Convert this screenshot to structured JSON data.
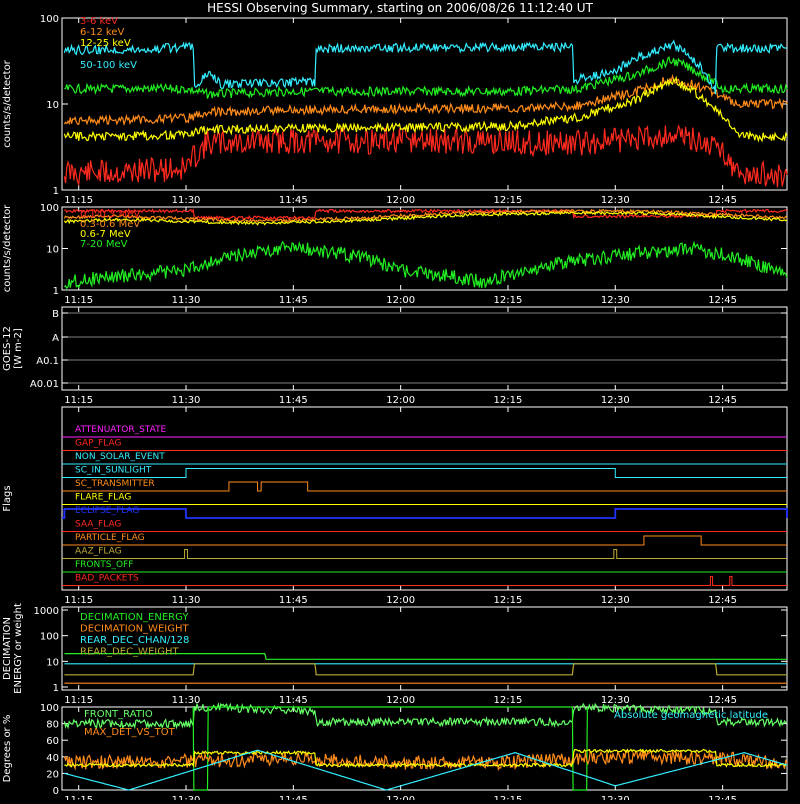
{
  "title": "HESSI Observing Summary, starting on 2006/08/26 11:12:40 UT",
  "time_axis": {
    "start": "11:12:40",
    "end": "12:54:00",
    "ticks": [
      "11:15",
      "11:30",
      "11:45",
      "12:00",
      "12:15",
      "12:30",
      "12:45"
    ]
  },
  "colors": {
    "background": "#000000",
    "frame": "#ffffff",
    "red": "#ff2a1f",
    "orange": "#ff8c1a",
    "yellow": "#ffff00",
    "green": "#22ee22",
    "cyan": "#33eeff",
    "magenta": "#ff22ff",
    "blue": "#2233ff",
    "olive": "#bbaa33",
    "lightgreen": "#66ff66"
  },
  "chart_data": [
    {
      "id": "low-energy-rates",
      "type": "line",
      "ylabel": "counts/s/detector",
      "yscale": "log",
      "ylim": [
        1,
        100
      ],
      "ytick_labels": [
        "1",
        "10",
        "100"
      ],
      "grid": false,
      "legend_position": "top-left",
      "series": [
        {
          "name": "3-6 keV",
          "color": "red",
          "legend_visible": true,
          "x": [
            "11:13",
            "11:20",
            "11:30",
            "11:33",
            "11:45",
            "12:00",
            "12:15",
            "12:25",
            "12:33",
            "12:38",
            "12:45",
            "12:47",
            "12:54"
          ],
          "y": [
            1.6,
            1.6,
            1.8,
            3.5,
            3.7,
            3.7,
            3.6,
            3.5,
            4.0,
            4.5,
            3.0,
            1.5,
            1.5
          ]
        },
        {
          "name": "6-12 keV",
          "color": "orange",
          "legend_visible": true,
          "x": [
            "11:13",
            "11:20",
            "11:30",
            "11:33",
            "11:45",
            "12:00",
            "12:15",
            "12:25",
            "12:33",
            "12:38",
            "12:45",
            "12:47",
            "12:54"
          ],
          "y": [
            6.5,
            6.5,
            6.8,
            8.0,
            8.5,
            8.8,
            9.0,
            9.5,
            14,
            20,
            12,
            10,
            10
          ]
        },
        {
          "name": "12-25 keV",
          "color": "yellow",
          "legend_visible": true,
          "x": [
            "11:13",
            "11:20",
            "11:30",
            "11:33",
            "11:45",
            "12:00",
            "12:15",
            "12:25",
            "12:33",
            "12:38",
            "12:45",
            "12:47",
            "12:54"
          ],
          "y": [
            4.2,
            4.2,
            4.4,
            5.0,
            5.3,
            5.3,
            5.5,
            7.0,
            11,
            19,
            7.0,
            4.2,
            4.2
          ]
        },
        {
          "name": "",
          "color": "green",
          "legend_visible": false,
          "x": [
            "11:13",
            "11:20",
            "11:30",
            "11:33",
            "11:45",
            "12:00",
            "12:15",
            "12:25",
            "12:33",
            "12:38",
            "12:45",
            "12:47",
            "12:54"
          ],
          "y": [
            15,
            15,
            15,
            13,
            14,
            14,
            14,
            15,
            22,
            32,
            15,
            15,
            15
          ]
        },
        {
          "name": "50-100 keV",
          "color": "cyan",
          "legend_visible": true,
          "x": [
            "11:13",
            "11:25",
            "11:31",
            "11:31.2",
            "11:33",
            "11:35",
            "11:48",
            "11:48.2",
            "12:00",
            "12:24",
            "12:24.2",
            "12:30",
            "12:38",
            "12:44",
            "12:44.2",
            "12:54"
          ],
          "y": [
            42,
            44,
            46,
            15,
            22,
            17,
            18,
            44,
            45,
            46,
            19,
            24,
            50,
            14,
            44,
            45
          ]
        }
      ]
    },
    {
      "id": "high-energy-rates",
      "type": "line",
      "ylabel": "counts/s/detector",
      "yscale": "log",
      "ylim": [
        1,
        100
      ],
      "ytick_labels": [
        "1",
        "10",
        "100"
      ],
      "grid": false,
      "legend_position": "top-left",
      "series": [
        {
          "name": "0.1-0.3 MeV",
          "color": "red",
          "x": [
            "11:13",
            "11:31",
            "11:31.2",
            "11:48",
            "11:48.2",
            "12:24",
            "12:24.2",
            "12:44",
            "12:44.2",
            "12:54"
          ],
          "y": [
            80,
            80,
            55,
            55,
            80,
            80,
            60,
            60,
            80,
            80
          ]
        },
        {
          "name": "0.3-0.6 MeV",
          "color": "orange",
          "x": [
            "11:13",
            "11:20",
            "11:40",
            "11:55",
            "12:10",
            "12:25",
            "12:35",
            "12:50",
            "12:54"
          ],
          "y": [
            55,
            60,
            45,
            55,
            75,
            80,
            78,
            60,
            55
          ]
        },
        {
          "name": "0.6-7 MeV",
          "color": "yellow",
          "x": [
            "11:13",
            "11:20",
            "11:40",
            "11:55",
            "12:10",
            "12:25",
            "12:35",
            "12:50",
            "12:54"
          ],
          "y": [
            45,
            50,
            40,
            48,
            65,
            72,
            70,
            52,
            48
          ]
        },
        {
          "name": "7-20 MeV",
          "color": "green",
          "x": [
            "11:13",
            "11:30",
            "11:45",
            "12:00",
            "12:12",
            "12:25",
            "12:40",
            "12:54"
          ],
          "y": [
            1.5,
            3,
            11,
            3,
            1.5,
            5,
            10,
            2
          ]
        }
      ]
    },
    {
      "id": "goes-12",
      "type": "line",
      "ylabel": "GOES-12 [W m-2]",
      "yscale": "log",
      "ytick_labels": [
        "A0.01",
        "A0.1",
        "A",
        "B"
      ],
      "grid": true,
      "series": [
        {
          "name": "",
          "color": "green",
          "x": [
            "11:13",
            "11:30",
            "11:45",
            "11:52",
            "12:00",
            "12:15",
            "12:30",
            "12:35",
            "12:40",
            "12:54"
          ],
          "y": [
            "B-",
            "B-",
            "B-",
            "B-",
            "B-",
            "B-",
            "B-",
            "B-",
            "B",
            "B"
          ]
        },
        {
          "name": "",
          "color": "magenta",
          "x": [
            "11:13",
            "12:54"
          ],
          "y": [
            "A0.1+",
            "A0.1+"
          ]
        }
      ]
    },
    {
      "id": "flags",
      "type": "line",
      "ylabel": "Flags",
      "grid": false,
      "flags": [
        {
          "name": "ATTENUATOR_STATE",
          "color": "magenta",
          "steps": []
        },
        {
          "name": "GAP_FLAG",
          "color": "red",
          "steps": []
        },
        {
          "name": "NON_SOLAR_EVENT",
          "color": "cyan",
          "steps": []
        },
        {
          "name": "SC_IN_SUNLIGHT",
          "color": "cyan",
          "steps": [
            [
              "11:30",
              "12:30"
            ]
          ]
        },
        {
          "name": "SC_TRANSMITTER",
          "color": "orange",
          "steps": [
            [
              "11:36",
              "11:40"
            ],
            [
              "11:40.5",
              "11:47"
            ]
          ]
        },
        {
          "name": "FLARE_FLAG",
          "color": "yellow",
          "steps": []
        },
        {
          "name": "ECLIPSE_FLAG",
          "color": "blue",
          "steps": [
            [
              "11:13",
              "11:30"
            ],
            [
              "12:30",
              "12:54"
            ]
          ]
        },
        {
          "name": "SAA_FLAG",
          "color": "red",
          "steps": []
        },
        {
          "name": "PARTICLE_FLAG",
          "color": "orange",
          "steps": [
            [
              "12:34",
              "12:42"
            ]
          ]
        },
        {
          "name": "AAZ_FLAG",
          "color": "olive",
          "steps": [
            [
              "11:29.8",
              "11:30.2"
            ],
            [
              "12:29.8",
              "12:30.2"
            ]
          ]
        },
        {
          "name": "FRONTS_OFF",
          "color": "green",
          "steps": []
        },
        {
          "name": "BAD_PACKETS",
          "color": "red",
          "steps": [
            [
              "12:43.3",
              "12:43.6"
            ],
            [
              "12:46",
              "12:46.3"
            ]
          ]
        }
      ]
    },
    {
      "id": "decimation",
      "type": "line",
      "ylabel": "DECIMATION ENERGY or weight",
      "yscale": "log",
      "ylim": [
        1,
        1000
      ],
      "ytick_labels": [
        "1",
        "10",
        "100",
        "1000"
      ],
      "grid": false,
      "legend_position": "top-left",
      "series": [
        {
          "name": "DECIMATION_ENERGY",
          "color": "green",
          "x": [
            "11:13",
            "11:41",
            "11:41.2",
            "12:54"
          ],
          "y": [
            20,
            20,
            12,
            12
          ]
        },
        {
          "name": "DECIMATION_WEIGHT",
          "color": "orange",
          "x": [
            "11:13",
            "12:54"
          ],
          "y": [
            1.4,
            1.4
          ]
        },
        {
          "name": "REAR_DEC_CHAN/128",
          "color": "cyan",
          "x": [
            "11:13",
            "11:48",
            "11:48.2",
            "12:24",
            "12:24.2",
            "12:54"
          ],
          "y": [
            8,
            8,
            8,
            8,
            8,
            8
          ]
        },
        {
          "name": "REAR_DEC_WEIGHT",
          "color": "olive",
          "x": [
            "11:13",
            "11:31",
            "11:31.2",
            "11:48",
            "11:48.2",
            "12:24",
            "12:24.2",
            "12:44",
            "12:44.2",
            "12:54"
          ],
          "y": [
            3,
            3,
            8,
            8,
            3,
            3,
            8,
            8,
            3,
            3
          ]
        }
      ]
    },
    {
      "id": "ratios",
      "type": "line",
      "ylabel": "Degrees or %",
      "ylim": [
        0,
        100
      ],
      "ytick_labels": [
        "0",
        "20",
        "40",
        "60",
        "80",
        "100"
      ],
      "grid": false,
      "legend_position": "top-left",
      "annotation": "Absolute geomagnetic latitude",
      "series": [
        {
          "name": "FRONT_RATIO",
          "color": "lightgreen",
          "x": [
            "11:13",
            "11:31",
            "11:31.2",
            "11:48",
            "11:48.2",
            "12:24",
            "12:24.2",
            "12:44",
            "12:44.2",
            "12:54"
          ],
          "y": [
            80,
            80,
            100,
            95,
            82,
            82,
            100,
            95,
            82,
            82
          ]
        },
        {
          "name": "",
          "color": "green",
          "legend_visible": false,
          "x": [
            "11:31",
            "11:31.1",
            "11:33",
            "11:33.1",
            "12:24",
            "12:24.1",
            "12:26",
            "12:26.1"
          ],
          "y": [
            100,
            0,
            0,
            100,
            100,
            0,
            0,
            100
          ]
        },
        {
          "name": "MAX_DET_VS_TOT",
          "color": "orange",
          "x": [
            "11:13",
            "11:30",
            "11:45",
            "12:00",
            "12:15",
            "12:30",
            "12:45",
            "12:54"
          ],
          "y": [
            33,
            35,
            38,
            33,
            33,
            40,
            38,
            33
          ]
        },
        {
          "name": "",
          "color": "yellow",
          "legend_visible": false,
          "x": [
            "11:13",
            "11:31",
            "11:31.2",
            "11:48",
            "11:48.2",
            "12:24",
            "12:24.2",
            "12:44",
            "12:44.2",
            "12:54"
          ],
          "y": [
            30,
            30,
            45,
            45,
            30,
            30,
            47,
            47,
            30,
            30
          ]
        },
        {
          "name": "",
          "color": "cyan",
          "legend_visible": false,
          "x": [
            "11:13",
            "11:22",
            "11:40",
            "11:58",
            "12:16",
            "12:30",
            "12:48",
            "12:54"
          ],
          "y": [
            20,
            0,
            48,
            0,
            45,
            5,
            45,
            30
          ]
        }
      ]
    }
  ]
}
